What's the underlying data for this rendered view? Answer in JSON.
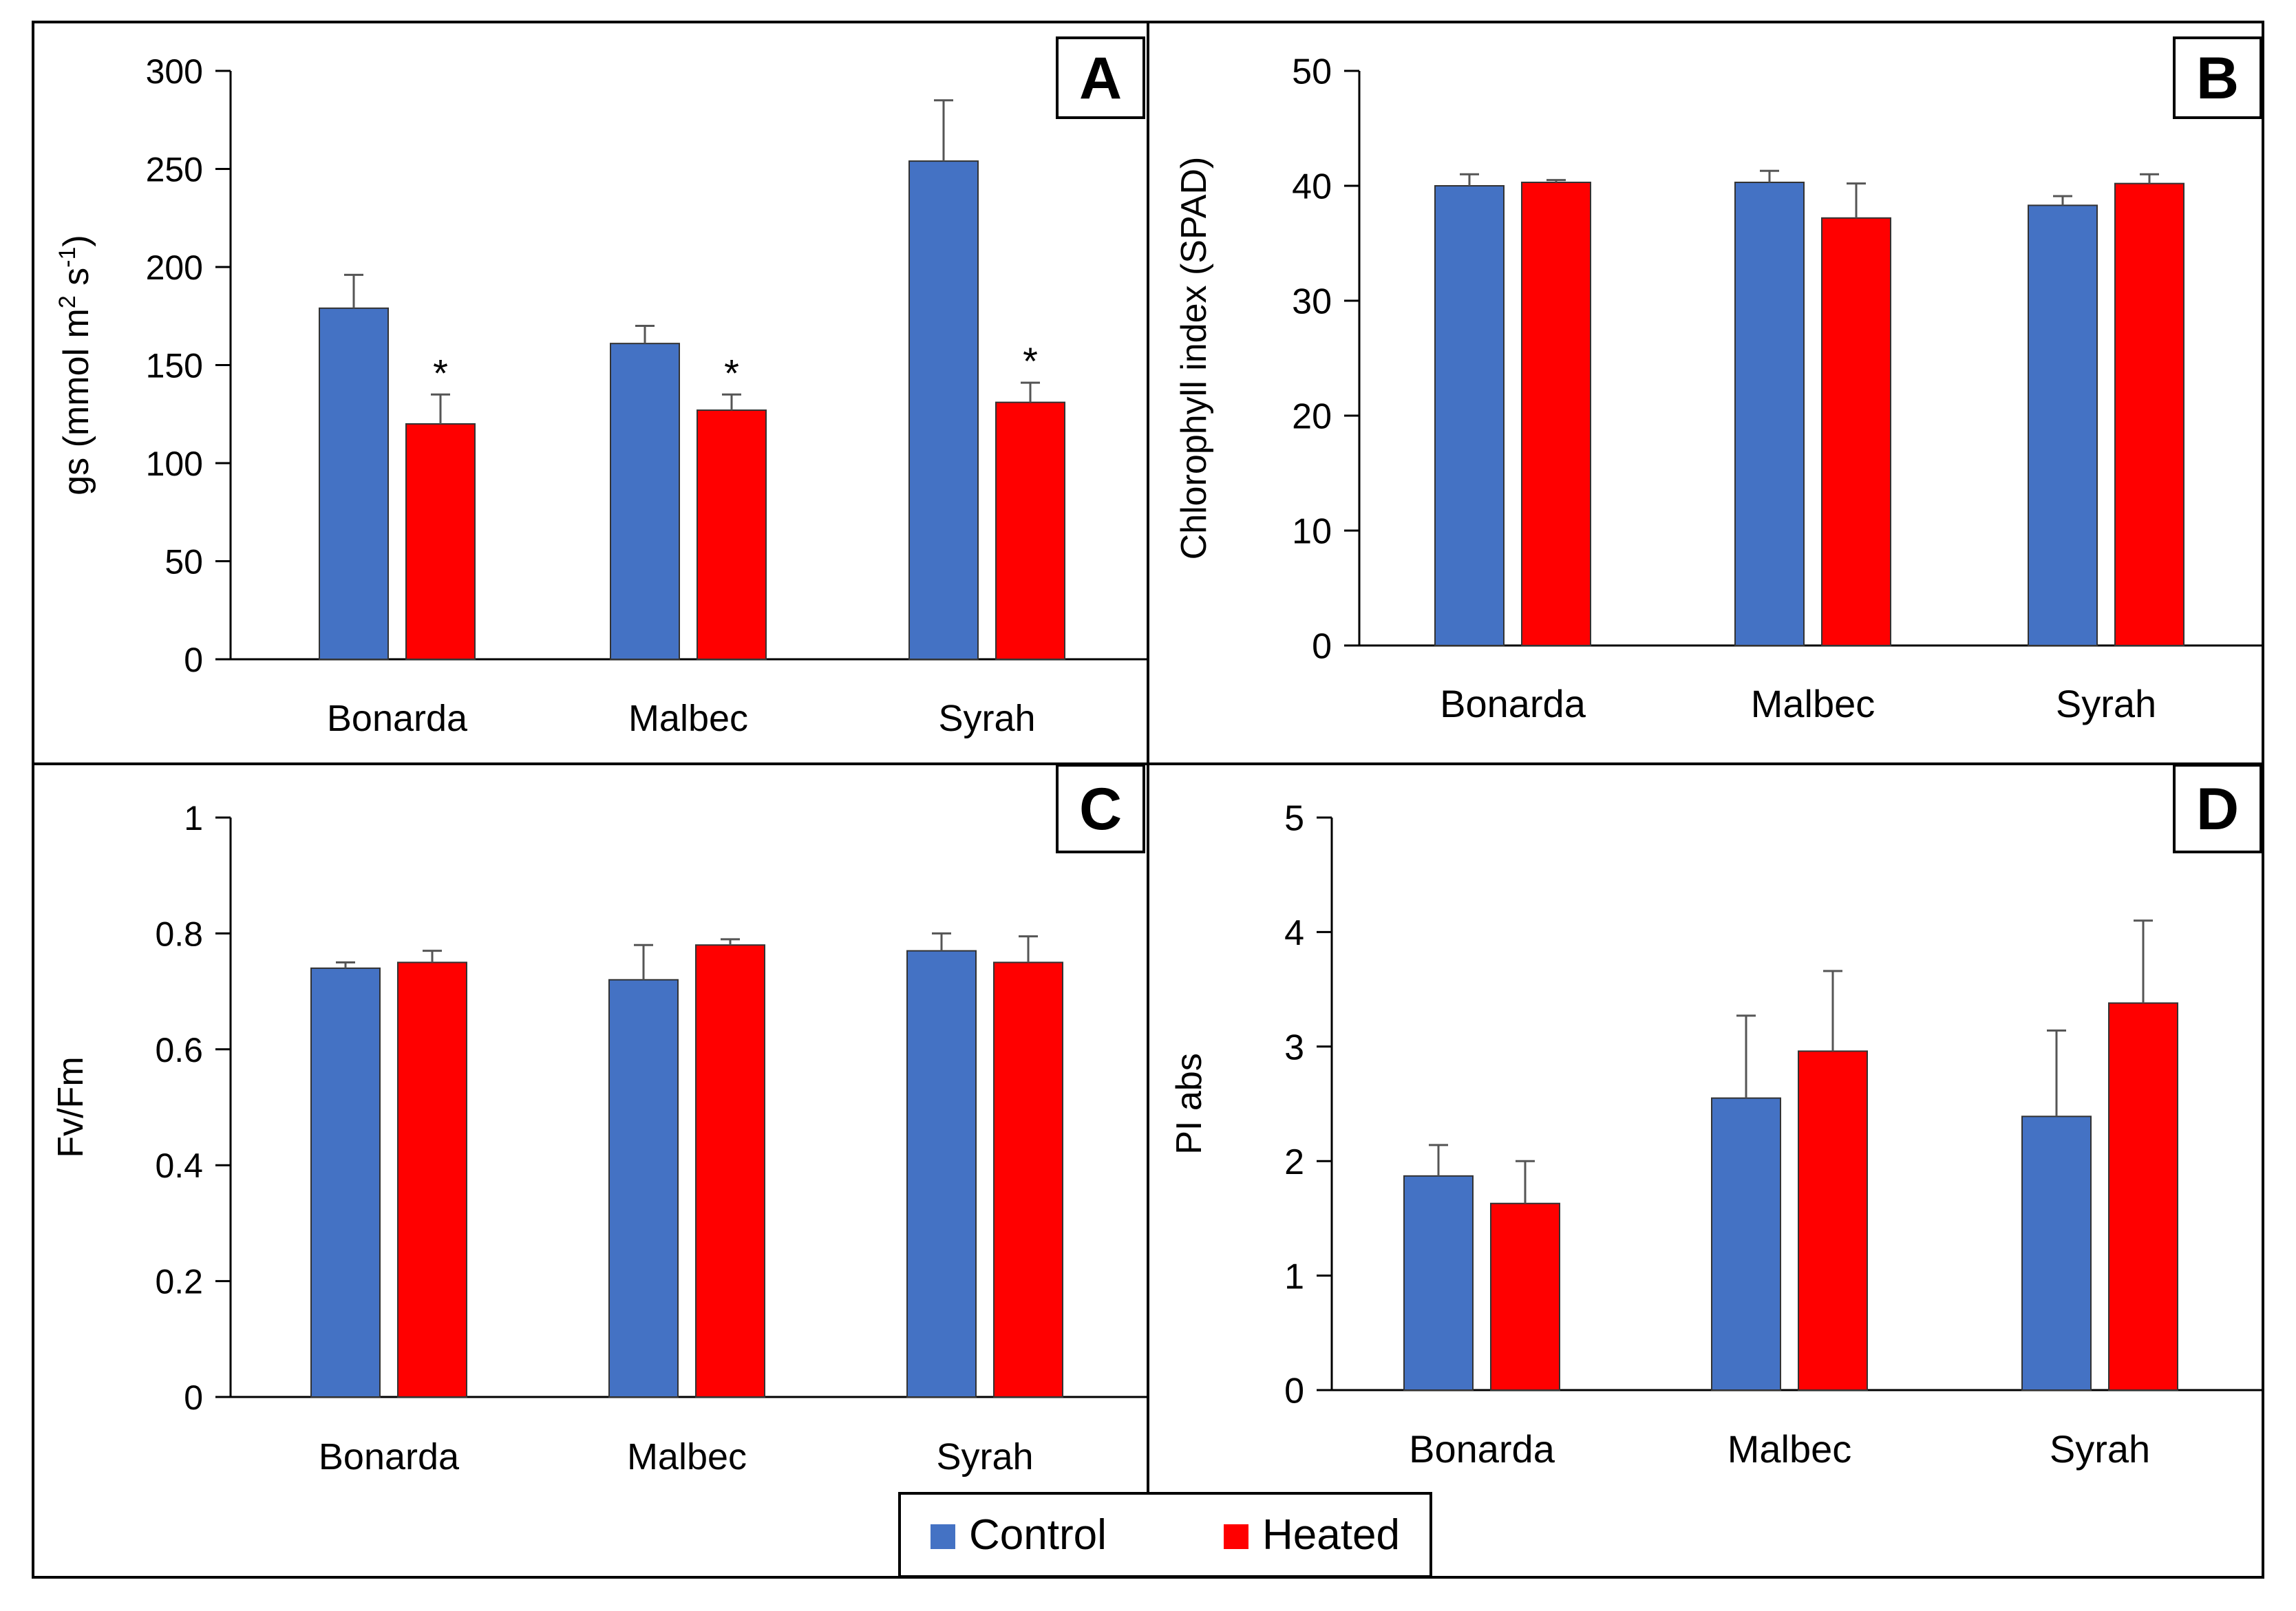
{
  "colors": {
    "control": "#4472C4",
    "heated": "#FF0000",
    "axis": "#000000",
    "error_bar": "#555555"
  },
  "legend": {
    "items": [
      "Control",
      "Heated"
    ]
  },
  "chart_data": [
    {
      "panel": "A",
      "type": "bar",
      "ylabel": "gs (mmol m",
      "ylabel_sup1": "2",
      "ylabel_mid": " s",
      "ylabel_sup2": "-1",
      "ylabel_end": ")",
      "categories": [
        "Bonarda",
        "Malbec",
        "Syrah"
      ],
      "ylim": [
        0,
        300
      ],
      "yticks": [
        0,
        50,
        100,
        150,
        200,
        250,
        300
      ],
      "series": [
        {
          "name": "Control",
          "values": [
            179,
            161,
            254
          ],
          "errors": [
            17,
            9,
            31
          ]
        },
        {
          "name": "Heated",
          "values": [
            120,
            127,
            131
          ],
          "errors": [
            15,
            8,
            10
          ]
        }
      ],
      "significance": [
        {
          "category": "Bonarda",
          "series": "Heated",
          "label": "*"
        },
        {
          "category": "Malbec",
          "series": "Heated",
          "label": "*"
        },
        {
          "category": "Syrah",
          "series": "Heated",
          "label": "*"
        }
      ]
    },
    {
      "panel": "B",
      "type": "bar",
      "ylabel": "Chlorophyll index (SPAD)",
      "categories": [
        "Bonarda",
        "Malbec",
        "Syrah"
      ],
      "ylim": [
        0,
        50
      ],
      "yticks": [
        0,
        10,
        20,
        30,
        40,
        50
      ],
      "series": [
        {
          "name": "Control",
          "values": [
            40,
            40.3,
            38.3
          ],
          "errors": [
            1,
            1,
            0.8
          ]
        },
        {
          "name": "Heated",
          "values": [
            40.3,
            37.2,
            40.2
          ],
          "errors": [
            0.2,
            3,
            0.8
          ]
        }
      ]
    },
    {
      "panel": "C",
      "type": "bar",
      "ylabel": "Fv/Fm",
      "categories": [
        "Bonarda",
        "Malbec",
        "Syrah"
      ],
      "ylim": [
        0,
        1
      ],
      "yticks": [
        "0",
        "0.2",
        "0.4",
        "0.6",
        "0.8",
        "1"
      ],
      "series": [
        {
          "name": "Control",
          "values": [
            0.74,
            0.72,
            0.77
          ],
          "errors": [
            0.01,
            0.06,
            0.03
          ]
        },
        {
          "name": "Heated",
          "values": [
            0.75,
            0.78,
            0.75
          ],
          "errors": [
            0.02,
            0.01,
            0.045
          ]
        }
      ]
    },
    {
      "panel": "D",
      "type": "bar",
      "ylabel": "PI abs",
      "categories": [
        "Bonarda",
        "Malbec",
        "Syrah"
      ],
      "ylim": [
        0,
        5
      ],
      "yticks": [
        0,
        1,
        2,
        3,
        4,
        5
      ],
      "series": [
        {
          "name": "Control",
          "values": [
            1.87,
            2.55,
            2.39
          ],
          "errors": [
            0.27,
            0.72,
            0.75
          ]
        },
        {
          "name": "Heated",
          "values": [
            1.63,
            2.96,
            3.38
          ],
          "errors": [
            0.37,
            0.7,
            0.72
          ]
        }
      ]
    }
  ]
}
